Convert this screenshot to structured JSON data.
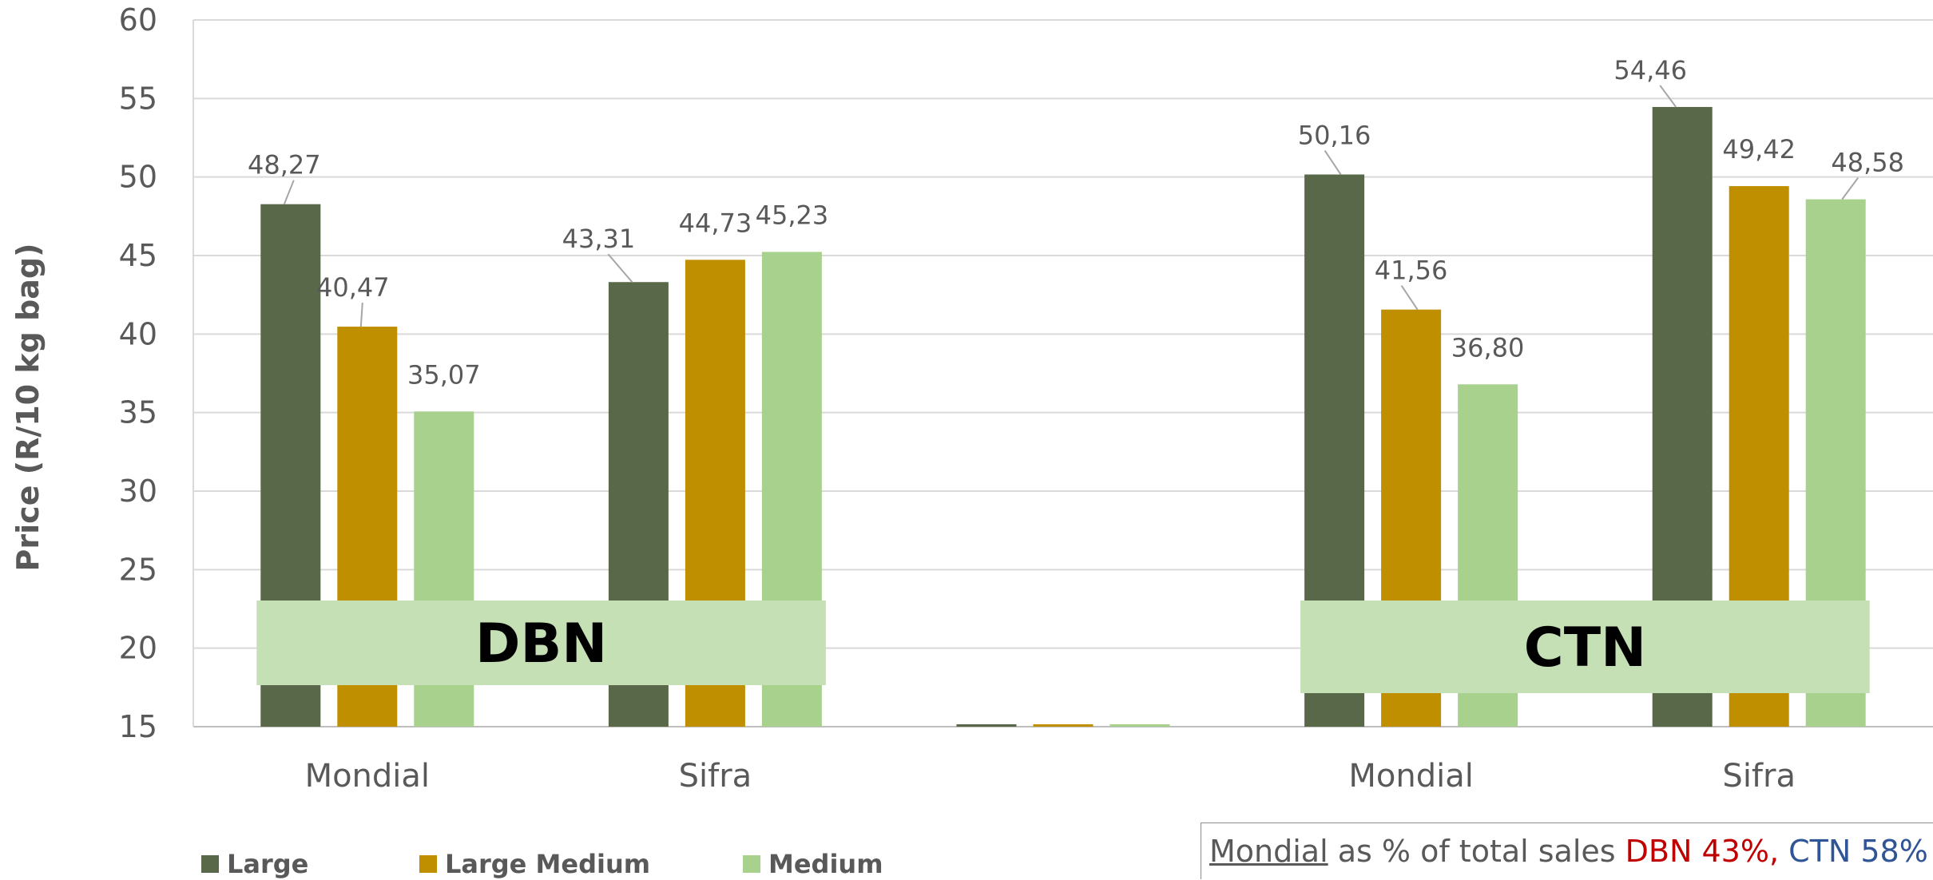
{
  "chart_data": {
    "type": "bar",
    "ylabel": "Price (R/10 kg bag)",
    "ylim": [
      15,
      60
    ],
    "yticks": [
      15,
      20,
      25,
      30,
      35,
      40,
      45,
      50,
      55,
      60
    ],
    "grid": true,
    "categories": [
      "Mondial",
      "Sifra",
      "",
      "Mondial",
      "Sifra"
    ],
    "series": [
      {
        "name": "Large",
        "color": "#596849",
        "values": [
          48.27,
          43.31,
          15,
          50.16,
          54.46
        ],
        "labels": [
          "48,27",
          "43,31",
          "",
          "50,16",
          "54,46"
        ]
      },
      {
        "name": "Large Medium",
        "color": "#bf8f00",
        "values": [
          40.47,
          44.73,
          15,
          41.56,
          49.42
        ],
        "labels": [
          "40,47",
          "44,73",
          "",
          "41,56",
          "49,42"
        ]
      },
      {
        "name": "Medium",
        "color": "#a9d18e",
        "values": [
          35.07,
          45.23,
          15,
          36.8,
          48.58
        ],
        "labels": [
          "35,07",
          "45,23",
          "",
          "36,80",
          "48,58"
        ]
      }
    ],
    "legend_position": "bottom-left",
    "region_labels": [
      "DBN",
      "CTN"
    ],
    "region_color": "#c5e0b4"
  },
  "note": {
    "underlined": "Mondial",
    "middle": " as % of total sales ",
    "dbn": "DBN 43%,",
    "ctn": " CTN 58%",
    "dbn_color": "#c00000",
    "ctn_color": "#2f5597"
  }
}
